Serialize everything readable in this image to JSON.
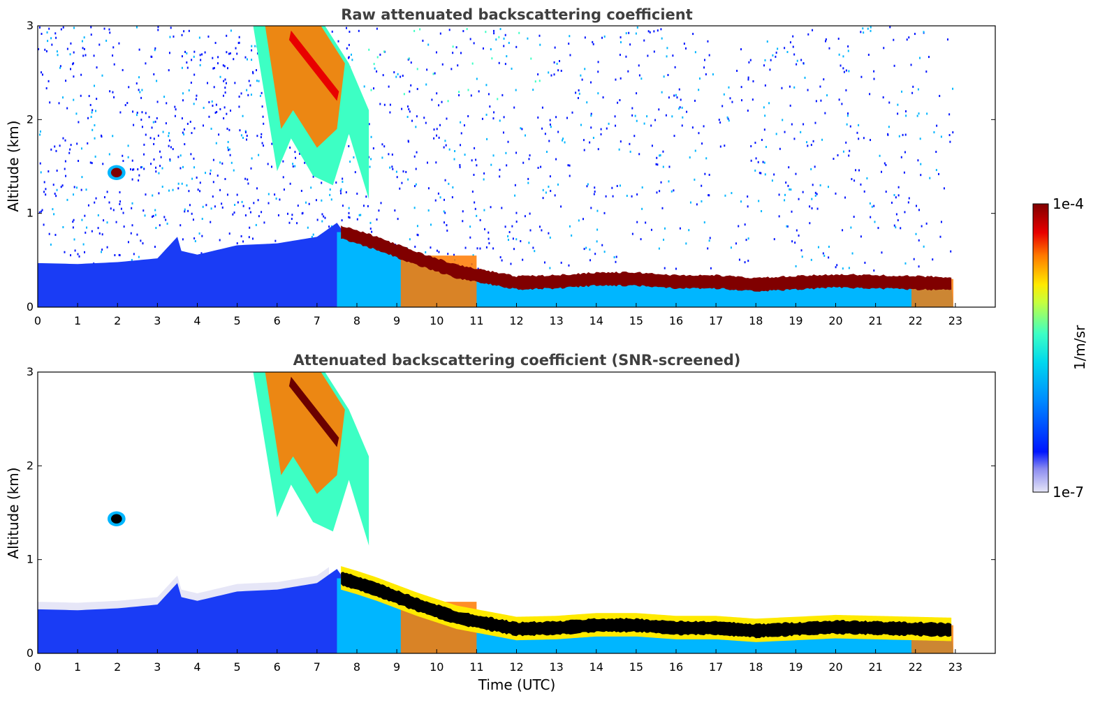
{
  "chart_data": [
    {
      "type": "heatmap",
      "title": "Raw attenuated backscattering coefficient",
      "xlabel": "",
      "ylabel": "Altitude (km)",
      "xlim": [
        0,
        24
      ],
      "ylim": [
        0,
        3
      ],
      "x_ticks": [
        0,
        1,
        2,
        3,
        4,
        5,
        6,
        7,
        8,
        9,
        10,
        11,
        12,
        13,
        14,
        15,
        16,
        17,
        18,
        19,
        20,
        21,
        22,
        23
      ],
      "y_ticks": [
        0,
        1,
        2,
        3
      ],
      "screened": false,
      "data_end_hour": 22.95,
      "mixed_layer_top_km": [
        [
          0,
          0.47
        ],
        [
          1,
          0.46
        ],
        [
          2,
          0.48
        ],
        [
          3,
          0.52
        ],
        [
          3.5,
          0.75
        ],
        [
          3.6,
          0.6
        ],
        [
          4,
          0.56
        ],
        [
          5,
          0.66
        ],
        [
          6,
          0.68
        ],
        [
          7,
          0.75
        ],
        [
          7.5,
          0.9
        ],
        [
          8,
          0.6
        ],
        [
          8.5,
          0.5
        ],
        [
          9,
          0.45
        ],
        [
          10,
          0.4
        ]
      ],
      "cloud_layer": {
        "description_levels_km": [
          [
            7.6,
            0.8
          ],
          [
            8,
            0.75
          ],
          [
            8.5,
            0.68
          ],
          [
            9,
            0.6
          ],
          [
            9.5,
            0.52
          ],
          [
            10,
            0.45
          ],
          [
            10.5,
            0.38
          ],
          [
            11,
            0.34
          ],
          [
            11.5,
            0.3
          ],
          [
            12,
            0.26
          ],
          [
            13,
            0.27
          ],
          [
            14,
            0.3
          ],
          [
            15,
            0.3
          ],
          [
            16,
            0.27
          ],
          [
            17,
            0.27
          ],
          [
            18,
            0.24
          ],
          [
            19,
            0.26
          ],
          [
            20,
            0.28
          ],
          [
            21,
            0.27
          ],
          [
            22,
            0.26
          ],
          [
            22.95,
            0.25
          ]
        ]
      },
      "small_cloud": {
        "x": [
          1.75,
          2.2
        ],
        "y_km": [
          1.37,
          1.5
        ]
      },
      "colorbar": {
        "min_label": "1e-7",
        "max_label": "1e-4",
        "label": "1/m/sr",
        "scale": "log"
      }
    },
    {
      "type": "heatmap",
      "title": "Attenuated backscattering coefficient (SNR-screened)",
      "xlabel": "Time (UTC)",
      "ylabel": "Altitude (km)",
      "xlim": [
        0,
        24
      ],
      "ylim": [
        0,
        3
      ],
      "x_ticks": [
        0,
        1,
        2,
        3,
        4,
        5,
        6,
        7,
        8,
        9,
        10,
        11,
        12,
        13,
        14,
        15,
        16,
        17,
        18,
        19,
        20,
        21,
        22,
        23
      ],
      "y_ticks": [
        0,
        1,
        2,
        3
      ],
      "screened": true,
      "data_end_hour": 22.95
    }
  ],
  "colorbar": {
    "top_label": "1e-4",
    "bottom_label": "1e-7",
    "unit": "1/m/sr"
  },
  "colors": {
    "cmap": [
      "#e6e6f7",
      "#0015ff",
      "#00b6ff",
      "#3dffc4",
      "#ffea00",
      "#ff7a00",
      "#e80000",
      "#800000"
    ]
  }
}
